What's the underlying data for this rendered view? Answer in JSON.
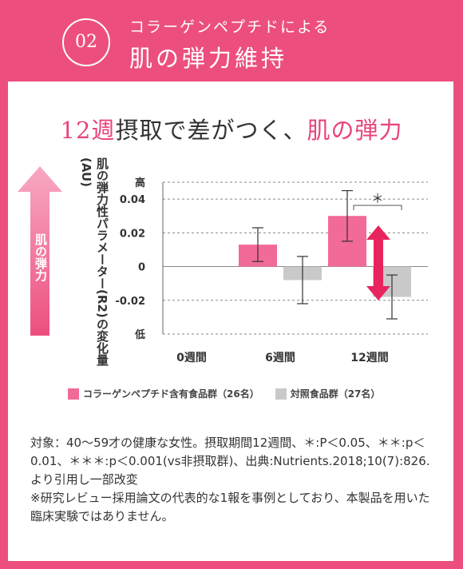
{
  "header": {
    "badge": "02",
    "subtitle": "コラーゲンペプチドによる",
    "title": "肌の弾力維持"
  },
  "headline": {
    "part1": "12週",
    "part2": "摂取で差がつく、",
    "part3": "肌の弾力"
  },
  "arrow_label": "肌の弾力",
  "colors": {
    "accent": "#ec4f7e",
    "collagen": "#f26a97",
    "control": "#c9c9c9"
  },
  "chart_data": {
    "type": "bar",
    "ylabel": "肌の弾力性パラメーター(R2)の変化量(AU)",
    "categories": [
      "0週間",
      "6週間",
      "12週間"
    ],
    "ylim": [
      -0.04,
      0.05
    ],
    "yticks": [
      {
        "value": 0.05,
        "label": "高"
      },
      {
        "value": 0.04,
        "label": "0.04"
      },
      {
        "value": 0.02,
        "label": "0.02"
      },
      {
        "value": 0.0,
        "label": "0"
      },
      {
        "value": -0.02,
        "label": "-0.02"
      },
      {
        "value": -0.04,
        "label": "低"
      }
    ],
    "grid": true,
    "series": [
      {
        "name": "コラーゲンペプチド含有食品群（26名）",
        "values": [
          null,
          0.013,
          0.03
        ],
        "error": [
          null,
          0.01,
          0.015
        ]
      },
      {
        "name": "対照食品群（27名）",
        "values": [
          null,
          -0.008,
          -0.018
        ],
        "error": [
          null,
          0.014,
          0.013
        ]
      }
    ],
    "significance": {
      "category": "12週間",
      "label": "＊"
    },
    "legend_position": "bottom"
  },
  "note": [
    "対象：40～59才の健康な女性。摂取期間12週間、＊:P＜0.05、＊＊:p＜0.01、＊＊＊:p＜0.001(vs非摂取群)、出典:Nutrients.2018;10(7):826.より引用し一部改変",
    "※研究レビュー採用論文の代表的な1報を事例としており、本製品を用いた臨床実験ではありません。"
  ]
}
